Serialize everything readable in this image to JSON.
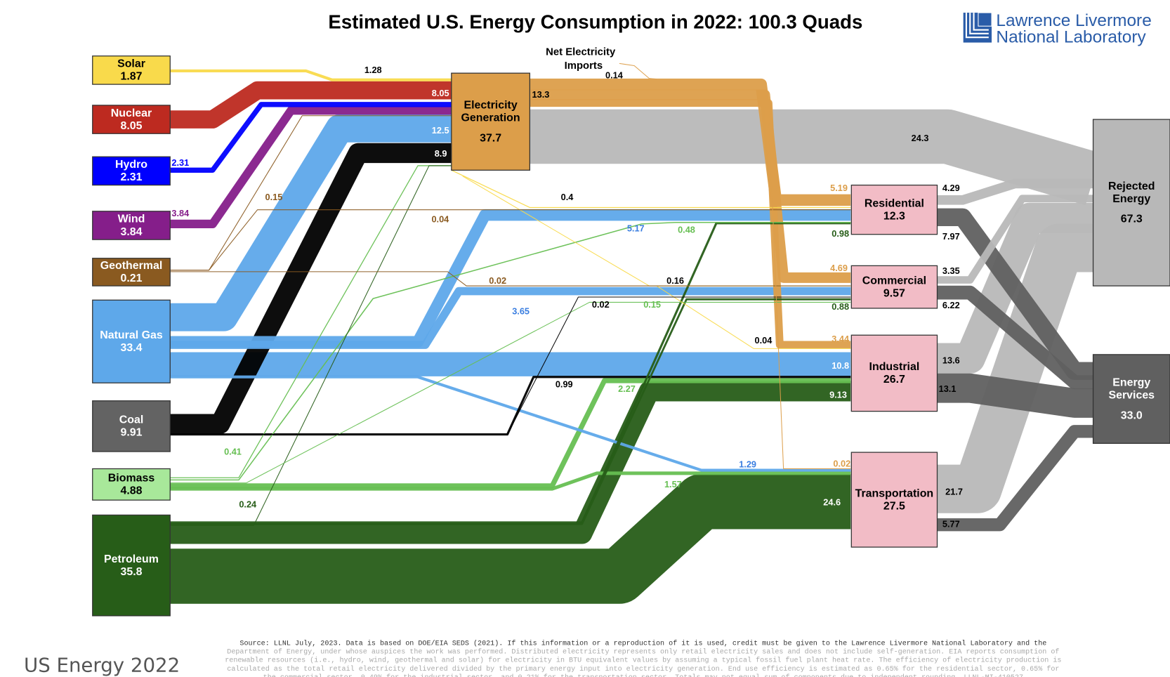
{
  "header": {
    "title": "Estimated U.S. Energy Consumption in 2022: 100.3 Quads",
    "logo_line1": "Lawrence Livermore",
    "logo_line2": "National Laboratory"
  },
  "caption": "US Energy 2022",
  "footer_lines": [
    "Source: LLNL July, 2023. Data is based on DOE/EIA SEDS (2021). If this information or a reproduction of it is used, credit must be given to the Lawrence Livermore National Laboratory and the",
    "Department of Energy, under whose auspices the work was performed. Distributed electricity represents only retail electricity sales and does not include self-generation.  EIA reports consumption of",
    "renewable resources (i.e., hydro, wind, geothermal and solar) for electricity in BTU equivalent values by assuming a typical fossil fuel plant heat rate.  The efficiency of electricity production is",
    "calculated as the total retail electricity delivered divided by the primary energy input into electricity generation.  End use efficiency is estimated as 0.65% for the residential sector, 0.65% for",
    "the commercial sector, 0.49% for the industrial sector, and 0.21% for the transportation sector.  Totals may not equal sum of components due to independent rounding. LLNL-MI-410527"
  ],
  "chart_data": {
    "type": "sankey",
    "title": "Estimated U.S. Energy Consumption in 2022: 100.3 Quads",
    "units": "Quads",
    "nodes": [
      {
        "id": "solar",
        "label": "Solar",
        "value": "1.87",
        "color": "#f9da4b",
        "text_color": "#000000"
      },
      {
        "id": "nuclear",
        "label": "Nuclear",
        "value": "8.05",
        "color": "#bd2a20",
        "text_color": "#ffffff"
      },
      {
        "id": "hydro",
        "label": "Hydro",
        "value": "2.31",
        "color": "#0000ff",
        "text_color": "#ffffff"
      },
      {
        "id": "wind",
        "label": "Wind",
        "value": "3.84",
        "color": "#851e8a",
        "text_color": "#ffffff"
      },
      {
        "id": "geothermal",
        "label": "Geothermal",
        "value": "0.21",
        "color": "#8a5a20",
        "text_color": "#ffffff"
      },
      {
        "id": "natural_gas",
        "label": "Natural Gas",
        "value": "33.4",
        "color": "#5ea8ea",
        "text_color": "#ffffff"
      },
      {
        "id": "coal",
        "label": "Coal",
        "value": "9.91",
        "color": "#636363",
        "text_color": "#ffffff"
      },
      {
        "id": "biomass",
        "label": "Biomass",
        "value": "4.88",
        "color": "#a8e89a",
        "text_color": "#000000"
      },
      {
        "id": "petroleum",
        "label": "Petroleum",
        "value": "35.8",
        "color": "#275d18",
        "text_color": "#ffffff"
      },
      {
        "id": "electricity",
        "label": "Electricity Generation",
        "value": "37.7",
        "color": "#dc9e4a",
        "text_color": "#000000"
      },
      {
        "id": "residential",
        "label": "Residential",
        "value": "12.3",
        "color": "#f2bcc6",
        "text_color": "#000000"
      },
      {
        "id": "commercial",
        "label": "Commercial",
        "value": "9.57",
        "color": "#f2bcc6",
        "text_color": "#000000"
      },
      {
        "id": "industrial",
        "label": "Industrial",
        "value": "26.7",
        "color": "#f2bcc6",
        "text_color": "#000000"
      },
      {
        "id": "transportation",
        "label": "Transportation",
        "value": "27.5",
        "color": "#f2bcc6",
        "text_color": "#000000"
      },
      {
        "id": "rejected",
        "label": "Rejected Energy",
        "value": "67.3",
        "color": "#b8b8b8",
        "text_color": "#000000"
      },
      {
        "id": "services",
        "label": "Energy Services",
        "value": "33.0",
        "color": "#606060",
        "text_color": "#ffffff"
      }
    ],
    "imports_label": "Net Electricity Imports",
    "flows": [
      {
        "from": "solar",
        "to": "electricity",
        "value": 1.28,
        "label": "1.28",
        "color": "#f9da4b",
        "label_color": "#000000"
      },
      {
        "from": "nuclear",
        "to": "electricity",
        "value": 8.05,
        "label": "8.05",
        "color": "#bd2a20",
        "label_color": "#ffffff"
      },
      {
        "from": "hydro",
        "to": "electricity",
        "value": 2.31,
        "label": "2.31",
        "color": "#0000ff",
        "label_color": "#0000ff"
      },
      {
        "from": "wind",
        "to": "electricity",
        "value": 3.84,
        "label": "3.84",
        "color": "#851e8a",
        "label_color": "#851e8a"
      },
      {
        "from": "geothermal",
        "to": "electricity",
        "value": 0.15,
        "label": "0.15",
        "color": "#8a5a20",
        "label_color": "#8a5a20"
      },
      {
        "from": "geothermal",
        "to": "residential",
        "value": 0.04,
        "label": "0.04",
        "color": "#8a5a20",
        "label_color": "#8a5a20"
      },
      {
        "from": "geothermal",
        "to": "commercial",
        "value": 0.02,
        "label": "0.02",
        "color": "#8a5a20",
        "label_color": "#8a5a20"
      },
      {
        "from": "natural_gas",
        "to": "electricity",
        "value": 12.5,
        "label": "12.5",
        "color": "#5ea8ea",
        "label_color": "#ffffff"
      },
      {
        "from": "coal",
        "to": "electricity",
        "value": 8.9,
        "label": "8.9",
        "color": "#000000",
        "label_color": "#ffffff"
      },
      {
        "from": "imports",
        "to": "electricity",
        "value": 0.14,
        "label": "0.14",
        "color": "#dc9e4a",
        "label_color": "#000000"
      },
      {
        "from": "electricity",
        "to": "end_uses",
        "value": 13.3,
        "label": "13.3",
        "color": "#dc9e4a",
        "label_color": "#000000"
      },
      {
        "from": "electricity",
        "to": "rejected",
        "value": 24.3,
        "label": "24.3",
        "color": "#b8b8b8",
        "label_color": "#000000"
      },
      {
        "from": "solar",
        "to": "residential",
        "value": 0.4,
        "label": "0.4",
        "color": "#f9da4b",
        "label_color": "#000000"
      },
      {
        "from": "natural_gas",
        "to": "residential",
        "value": 5.17,
        "label": "5.17",
        "color": "#5ea8ea",
        "label_color": "#3a7ee0"
      },
      {
        "from": "biomass",
        "to": "residential",
        "value": 0.48,
        "label": "0.48",
        "color": "#66bf52",
        "label_color": "#66bf52"
      },
      {
        "from": "petroleum",
        "to": "residential",
        "value": 0.98,
        "label": "0.98",
        "color": "#275d18",
        "label_color": "#275d18"
      },
      {
        "from": "electricity",
        "to": "residential",
        "value": 5.19,
        "label": "5.19",
        "color": "#dc9e4a",
        "label_color": "#dc9e4a"
      },
      {
        "from": "electricity",
        "to": "commercial",
        "value": 4.69,
        "label": "4.69",
        "color": "#dc9e4a",
        "label_color": "#dc9e4a"
      },
      {
        "from": "solar",
        "to": "commercial",
        "value": 0.16,
        "label": "0.16",
        "color": "#f9da4b",
        "label_color": "#000000"
      },
      {
        "from": "natural_gas",
        "to": "commercial",
        "value": 3.65,
        "label": "3.65",
        "color": "#5ea8ea",
        "label_color": "#3a7ee0"
      },
      {
        "from": "coal",
        "to": "commercial",
        "value": 0.02,
        "label": "0.02",
        "color": "#000000",
        "label_color": "#000000"
      },
      {
        "from": "biomass",
        "to": "commercial",
        "value": 0.15,
        "label": "0.15",
        "color": "#66bf52",
        "label_color": "#66bf52"
      },
      {
        "from": "petroleum",
        "to": "commercial",
        "value": 0.88,
        "label": "0.88",
        "color": "#275d18",
        "label_color": "#275d18"
      },
      {
        "from": "electricity",
        "to": "industrial",
        "value": 3.44,
        "label": "3.44",
        "color": "#dc9e4a",
        "label_color": "#dc9e4a"
      },
      {
        "from": "solar",
        "to": "industrial",
        "value": 0.04,
        "label": "0.04",
        "color": "#f9da4b",
        "label_color": "#000000"
      },
      {
        "from": "natural_gas",
        "to": "industrial",
        "value": 10.8,
        "label": "10.8",
        "color": "#5ea8ea",
        "label_color": "#ffffff"
      },
      {
        "from": "coal",
        "to": "industrial",
        "value": 0.99,
        "label": "0.99",
        "color": "#000000",
        "label_color": "#000000"
      },
      {
        "from": "biomass",
        "to": "industrial",
        "value": 2.27,
        "label": "2.27",
        "color": "#66bf52",
        "label_color": "#66bf52"
      },
      {
        "from": "petroleum",
        "to": "industrial",
        "value": 9.13,
        "label": "9.13",
        "color": "#275d18",
        "label_color": "#ffffff"
      },
      {
        "from": "biomass",
        "to": "electricity",
        "value": 0.41,
        "label": "0.41",
        "color": "#66bf52",
        "label_color": "#66bf52"
      },
      {
        "from": "petroleum",
        "to": "electricity",
        "value": 0.24,
        "label": "0.24",
        "color": "#275d18",
        "label_color": "#275d18"
      },
      {
        "from": "natural_gas",
        "to": "transportation",
        "value": 1.29,
        "label": "1.29",
        "color": "#5ea8ea",
        "label_color": "#3a7ee0"
      },
      {
        "from": "electricity",
        "to": "transportation",
        "value": 0.02,
        "label": "0.02",
        "color": "#dc9e4a",
        "label_color": "#dc9e4a"
      },
      {
        "from": "biomass",
        "to": "transportation",
        "value": 1.57,
        "label": "1.57",
        "color": "#66bf52",
        "label_color": "#66bf52"
      },
      {
        "from": "petroleum",
        "to": "transportation",
        "value": 24.6,
        "label": "24.6",
        "color": "#275d18",
        "label_color": "#ffffff"
      },
      {
        "from": "residential",
        "to": "rejected",
        "value": 4.29,
        "label": "4.29",
        "color": "#b8b8b8",
        "label_color": "#000000"
      },
      {
        "from": "residential",
        "to": "services",
        "value": 7.97,
        "label": "7.97",
        "color": "#606060",
        "label_color": "#000000"
      },
      {
        "from": "commercial",
        "to": "rejected",
        "value": 3.35,
        "label": "3.35",
        "color": "#b8b8b8",
        "label_color": "#000000"
      },
      {
        "from": "commercial",
        "to": "services",
        "value": 6.22,
        "label": "6.22",
        "color": "#606060",
        "label_color": "#000000"
      },
      {
        "from": "industrial",
        "to": "rejected",
        "value": 13.6,
        "label": "13.6",
        "color": "#b8b8b8",
        "label_color": "#000000"
      },
      {
        "from": "industrial",
        "to": "services",
        "value": 13.1,
        "label": "13.1",
        "color": "#606060",
        "label_color": "#000000"
      },
      {
        "from": "transportation",
        "to": "rejected",
        "value": 21.7,
        "label": "21.7",
        "color": "#b8b8b8",
        "label_color": "#000000"
      },
      {
        "from": "transportation",
        "to": "services",
        "value": 5.77,
        "label": "5.77",
        "color": "#606060",
        "label_color": "#000000"
      }
    ]
  }
}
